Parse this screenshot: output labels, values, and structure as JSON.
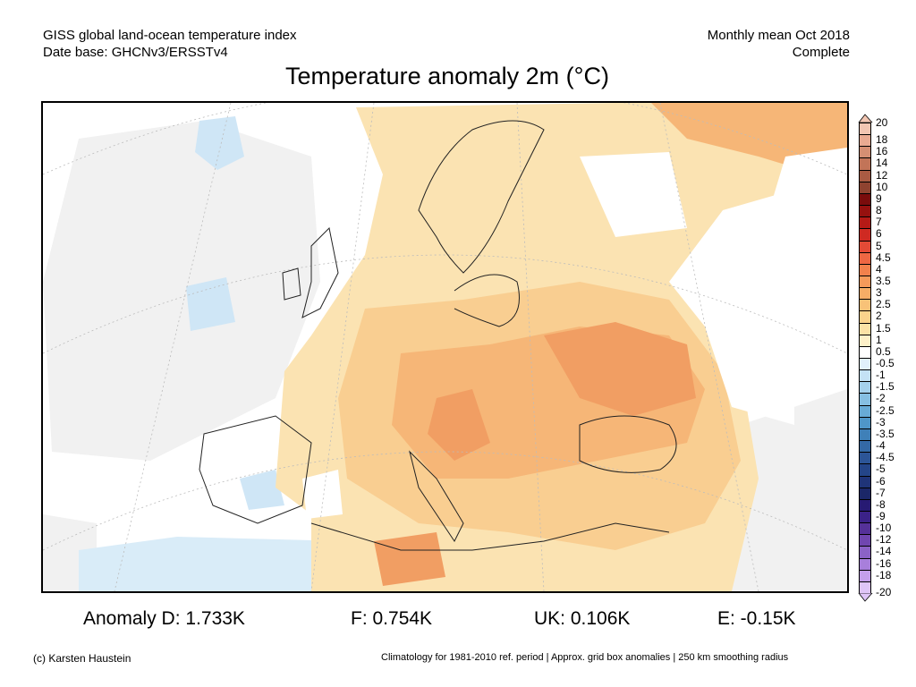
{
  "header": {
    "left_line1": "GISS global land-ocean temperature index",
    "left_line2": "Date base: GHCNv3/ERSSTv4",
    "right_line1": "Monthly mean Oct 2018",
    "right_line2": "Complete"
  },
  "title": "Temperature anomaly 2m (°C)",
  "colorbar": {
    "labels": [
      "20",
      "18",
      "16",
      "14",
      "12",
      "10",
      "9",
      "8",
      "7",
      "6",
      "5",
      "4.5",
      "4",
      "3.5",
      "3",
      "2.5",
      "2",
      "1.5",
      "1",
      "0.5",
      "-0.5",
      "-1",
      "-1.5",
      "-2",
      "-2.5",
      "-3",
      "-3.5",
      "-4",
      "-4.5",
      "-5",
      "-6",
      "-7",
      "-8",
      "-9",
      "-10",
      "-12",
      "-14",
      "-16",
      "-18",
      "-20"
    ],
    "colors": [
      "#f2c6b2",
      "#e9ab92",
      "#d58f73",
      "#c27458",
      "#a95b43",
      "#8f4330",
      "#7a0c0c",
      "#96110f",
      "#b41a16",
      "#cf2a22",
      "#e34a36",
      "#ee6743",
      "#f2814c",
      "#f59a5a",
      "#f6ad66",
      "#f8c278",
      "#fad38c",
      "#fbe2a6",
      "#fdf0c8",
      "#ffffff",
      "#e1f0fa",
      "#c4e2f5",
      "#a5d1ec",
      "#86bfe2",
      "#68abd6",
      "#4f96c8",
      "#3f80b8",
      "#3469a6",
      "#2c5597",
      "#244588",
      "#1f3478",
      "#1b2768",
      "#271a73",
      "#3b2288",
      "#553199",
      "#7046b0",
      "#8b62c6",
      "#a87fdb",
      "#c49fec",
      "#dfc5f8"
    ]
  },
  "anomalies": {
    "D": "Anomaly D: 1.733K",
    "F": "F: 0.754K",
    "UK": "UK: 0.106K",
    "E": "E: -0.15K"
  },
  "footer": {
    "left": "(c) Karsten Haustein",
    "right": "Climatology for 1981-2010 ref. period | Approx. grid box anomalies | 250 km smoothing radius"
  }
}
